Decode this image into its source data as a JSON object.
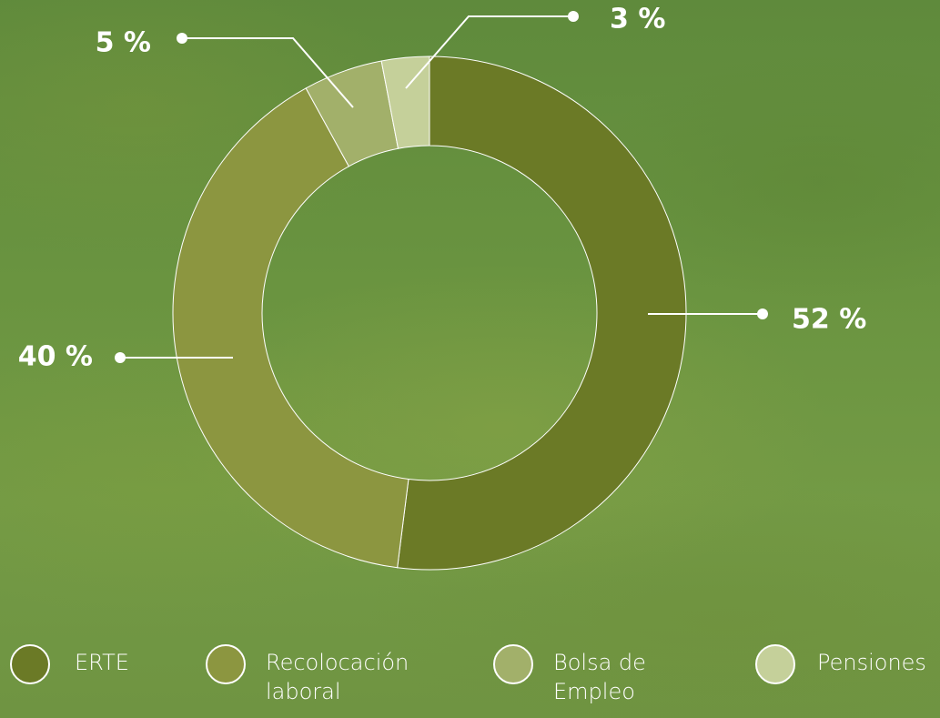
{
  "chart_data": {
    "type": "donut",
    "categories": [
      "ERTE",
      "Recolocación laboral",
      "Bolsa de Empleo",
      "Pensiones"
    ],
    "values": [
      52,
      40,
      5,
      3
    ],
    "value_labels": [
      "52 %",
      "40 %",
      "5 %",
      "3 %"
    ],
    "colors": [
      "#6b7a26",
      "#8c9640",
      "#a2b06a",
      "#c5d09a"
    ],
    "legend": "bottom"
  }
}
